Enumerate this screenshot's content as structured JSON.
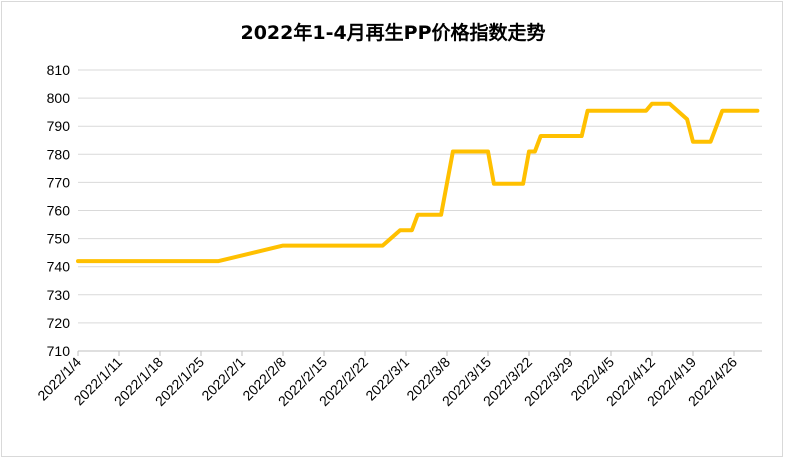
{
  "chart_data": {
    "type": "line",
    "title": "2022年1-4月再生PP价格指数走势",
    "xlabel": "",
    "ylabel": "",
    "ylim": [
      710,
      810
    ],
    "yticks": [
      710,
      720,
      730,
      740,
      750,
      760,
      770,
      780,
      790,
      800,
      810
    ],
    "x_tick_labels": [
      "2022/1/4",
      "2022/1/11",
      "2022/1/18",
      "2022/1/25",
      "2022/2/1",
      "2022/2/8",
      "2022/2/15",
      "2022/2/22",
      "2022/3/1",
      "2022/3/8",
      "2022/3/15",
      "2022/3/22",
      "2022/3/29",
      "2022/4/5",
      "2022/4/12",
      "2022/4/19",
      "2022/4/26"
    ],
    "grid": "horizontal",
    "line_color": "#FFC000",
    "series": [
      {
        "values": [
          {
            "x": "2022/1/4",
            "y": 742
          },
          {
            "x": "2022/1/11",
            "y": 742
          },
          {
            "x": "2022/1/18",
            "y": 742
          },
          {
            "x": "2022/1/25",
            "y": 742
          },
          {
            "x": "2022/1/28",
            "y": 742
          },
          {
            "x": "2022/2/8",
            "y": 747.5
          },
          {
            "x": "2022/2/15",
            "y": 747.5
          },
          {
            "x": "2022/2/22",
            "y": 747.5
          },
          {
            "x": "2022/2/25",
            "y": 747.5
          },
          {
            "x": "2022/2/28",
            "y": 753
          },
          {
            "x": "2022/3/2",
            "y": 753
          },
          {
            "x": "2022/3/3",
            "y": 758.5
          },
          {
            "x": "2022/3/7",
            "y": 758.5
          },
          {
            "x": "2022/3/9",
            "y": 781
          },
          {
            "x": "2022/3/15",
            "y": 781
          },
          {
            "x": "2022/3/16",
            "y": 769.5
          },
          {
            "x": "2022/3/21",
            "y": 769.5
          },
          {
            "x": "2022/3/22",
            "y": 781
          },
          {
            "x": "2022/3/23",
            "y": 781
          },
          {
            "x": "2022/3/24",
            "y": 786.5
          },
          {
            "x": "2022/3/31",
            "y": 786.5
          },
          {
            "x": "2022/4/1",
            "y": 795.5
          },
          {
            "x": "2022/4/11",
            "y": 795.5
          },
          {
            "x": "2022/4/12",
            "y": 798
          },
          {
            "x": "2022/4/15",
            "y": 798
          },
          {
            "x": "2022/4/18",
            "y": 792.5
          },
          {
            "x": "2022/4/19",
            "y": 784.5
          },
          {
            "x": "2022/4/22",
            "y": 784.5
          },
          {
            "x": "2022/4/24",
            "y": 795.5
          },
          {
            "x": "2022/4/30",
            "y": 795.5
          }
        ]
      }
    ]
  }
}
